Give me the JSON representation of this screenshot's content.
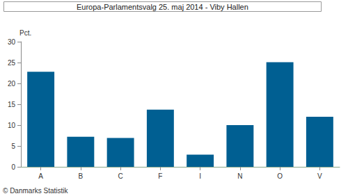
{
  "chart_data": {
    "type": "bar",
    "title": "Europa-Parlamentsvalg 25. maj 2014 - Viby Hallen",
    "y_label": "Pct.",
    "annotation": "© Danmarks Statistik",
    "categories": [
      "A",
      "B",
      "C",
      "F",
      "I",
      "N",
      "O",
      "V"
    ],
    "values": [
      22.8,
      7.2,
      6.9,
      13.7,
      2.9,
      10.0,
      25.1,
      12.0
    ],
    "color": "#005f92",
    "ylim": [
      0,
      30
    ],
    "yticks": [
      0,
      5,
      10,
      15,
      20,
      25,
      30
    ],
    "grid": false
  }
}
